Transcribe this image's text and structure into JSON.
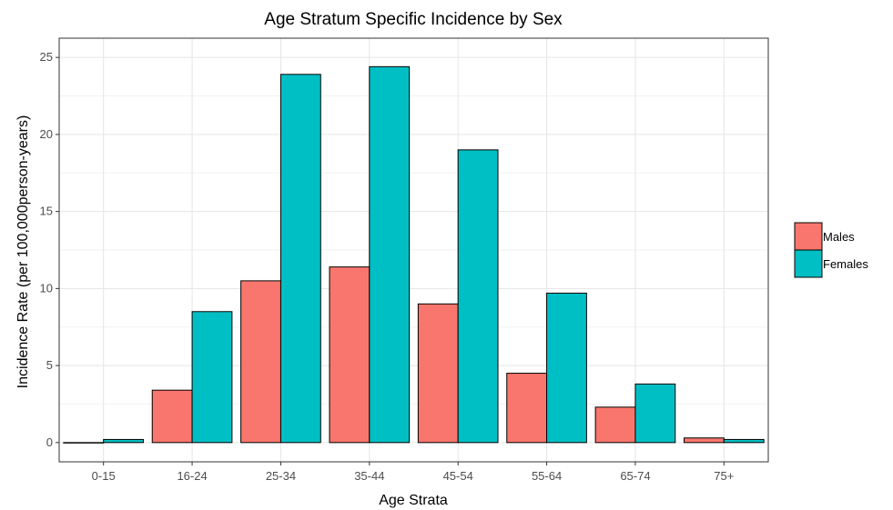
{
  "chart_data": {
    "type": "bar",
    "title": "Age Stratum Specific Incidence by Sex",
    "xlabel": "Age Strata",
    "ylabel": "Incidence Rate (per 100,000person-years)",
    "categories": [
      "0-15",
      "16-24",
      "25-34",
      "35-44",
      "45-54",
      "55-64",
      "65-74",
      "75+"
    ],
    "series": [
      {
        "name": "Males",
        "color": "#F8766D",
        "values": [
          0.0,
          3.4,
          10.5,
          11.4,
          9.0,
          4.5,
          2.3,
          0.3
        ]
      },
      {
        "name": "Females",
        "color": "#00BFC4",
        "values": [
          0.2,
          8.5,
          23.9,
          24.4,
          19.0,
          9.7,
          3.8,
          0.2
        ]
      }
    ],
    "ylim": [
      -1.25,
      26.25
    ],
    "yticks": [
      0,
      5,
      10,
      15,
      20,
      25
    ],
    "grid": true,
    "legend_position": "right"
  }
}
